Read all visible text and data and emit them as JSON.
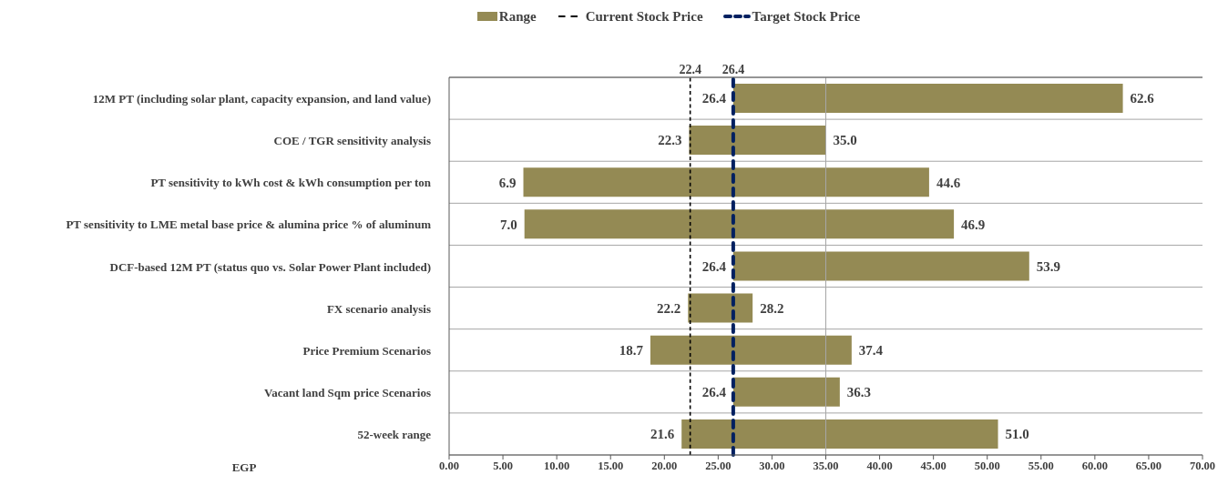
{
  "chart_data": {
    "type": "bar",
    "orientation": "horizontal",
    "categories": [
      "12M PT (including solar plant, capacity expansion, and land value)",
      "COE / TGR sensitivity analysis",
      "PT sensitivity to kWh cost & kWh consumption per ton",
      "PT sensitivity to LME metal base price & alumina price % of aluminum",
      "DCF-based 12M PT (status quo vs. Solar Power Plant included)",
      "FX scenario analysis",
      "Price Premium Scenarios",
      "Vacant land Sqm price Scenarios",
      "52-week range"
    ],
    "series": [
      {
        "name": "Range",
        "color": "#948a54",
        "base": [
          26.4,
          22.3,
          6.9,
          7.0,
          26.4,
          22.2,
          18.7,
          26.4,
          21.6
        ],
        "values": [
          36.2,
          12.7,
          37.7,
          39.9,
          27.5,
          6.0,
          18.7,
          9.9,
          29.4
        ]
      }
    ],
    "xlabel": "EGP",
    "xlim": [
      0,
      70
    ],
    "xticks": [
      {
        "value": 0,
        "label": "0.00"
      },
      {
        "value": 5,
        "label": "5.00"
      },
      {
        "value": 10,
        "label": "10.00"
      },
      {
        "value": 15,
        "label": "15.00"
      },
      {
        "value": 20,
        "label": "20.00"
      },
      {
        "value": 25,
        "label": "25.00"
      },
      {
        "value": 30,
        "label": "30.00"
      },
      {
        "value": 35,
        "label": "35.00"
      },
      {
        "value": 40,
        "label": "40.00"
      },
      {
        "value": 45,
        "label": "45.00"
      },
      {
        "value": 50,
        "label": "50.00"
      },
      {
        "value": 55,
        "label": "55.00"
      },
      {
        "value": 60,
        "label": "60.00"
      },
      {
        "value": 65,
        "label": "65.00"
      },
      {
        "value": 70,
        "label": "70.00"
      }
    ],
    "ref_lines": [
      {
        "axis": "x",
        "value": 22.4,
        "label": "Current Stock Price",
        "color": "#000000",
        "line_style": "dashed"
      },
      {
        "axis": "x",
        "value": 26.4,
        "label": "Target Stock Price",
        "color": "#002060",
        "line_style": "dashed"
      },
      {
        "axis": "x",
        "value": 35,
        "color": "#a6a6a6",
        "line_style": "solid"
      }
    ],
    "annotations": [
      "22.4",
      "26.4",
      {
        "text": "26.4",
        "x": 26.4,
        "y": "12M PT (including solar plant, capacity expansion, and land value)"
      },
      {
        "text": "62.6",
        "x": 62.6,
        "y": "12M PT (including solar plant, capacity expansion, and land value)"
      },
      {
        "text": "22.3",
        "x": 22.3,
        "y": "COE / TGR sensitivity analysis"
      },
      {
        "text": "35.0",
        "x": 35.0,
        "y": "COE / TGR sensitivity analysis"
      },
      {
        "text": "6.9",
        "x": 6.9,
        "y": "PT sensitivity to kWh cost & kWh consumption per ton"
      },
      {
        "text": "44.6",
        "x": 44.6,
        "y": "PT sensitivity to kWh cost & kWh consumption per ton"
      },
      {
        "text": "7.0",
        "x": 7.0,
        "y": "PT sensitivity to LME metal base price & alumina price % of aluminum"
      },
      {
        "text": "46.9",
        "x": 46.9,
        "y": "PT sensitivity to LME metal base price & alumina price % of aluminum"
      },
      {
        "text": "26.4",
        "x": 26.4,
        "y": "DCF-based 12M PT (status quo vs. Solar Power Plant included)"
      },
      {
        "text": "53.9",
        "x": 53.9,
        "y": "DCF-based 12M PT (status quo vs. Solar Power Plant included)"
      },
      {
        "text": "22.2",
        "x": 22.2,
        "y": "FX scenario analysis"
      },
      {
        "text": "28.2",
        "x": 28.2,
        "y": "FX scenario analysis"
      },
      {
        "text": "18.7",
        "x": 18.7,
        "y": "Price Premium Scenarios"
      },
      {
        "text": "37.4",
        "x": 37.4,
        "y": "Price Premium Scenarios"
      },
      {
        "text": "26.4",
        "x": 26.4,
        "y": "Vacant land Sqm price Scenarios"
      },
      {
        "text": "36.3",
        "x": 36.3,
        "y": "Vacant land Sqm price Scenarios"
      },
      {
        "text": "21.6",
        "x": 21.6,
        "y": "52-week range"
      },
      {
        "text": "51.0",
        "x": 51.0,
        "y": "52-week range"
      }
    ],
    "grid": "y",
    "legend": "top"
  }
}
